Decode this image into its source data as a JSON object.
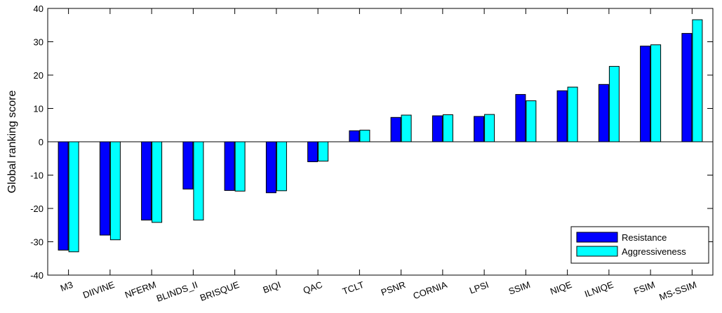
{
  "chart_data": {
    "type": "bar",
    "title": "",
    "xlabel": "",
    "ylabel": "Global ranking score",
    "ylim": [
      -40,
      40
    ],
    "yticks": [
      -40,
      -30,
      -20,
      -10,
      0,
      10,
      20,
      30,
      40
    ],
    "grid": false,
    "legend_position": "bottom-right",
    "categories": [
      "M3",
      "DIIVINE",
      "NFERM",
      "BLINDS_II",
      "BRISQUE",
      "BIQI",
      "QAC",
      "TCLT",
      "PSNR",
      "CORNIA",
      "LPSI",
      "SSIM",
      "NIQE",
      "ILNIQE",
      "FSIM",
      "MS-SSIM"
    ],
    "series": [
      {
        "name": "Resistance",
        "color": "#0000ff",
        "values": [
          -32.5,
          -28,
          -23.5,
          -14.2,
          -14.6,
          -15.3,
          -6,
          3.3,
          7.3,
          7.8,
          7.6,
          14.2,
          15.3,
          17.2,
          28.7,
          32.5
        ]
      },
      {
        "name": "Aggressiveness",
        "color": "#00ffff",
        "values": [
          -33,
          -29.4,
          -24.2,
          -23.5,
          -14.8,
          -14.7,
          -5.8,
          3.5,
          8,
          8.1,
          8.2,
          12.3,
          16.4,
          22.6,
          29.1,
          36.6
        ]
      }
    ]
  }
}
